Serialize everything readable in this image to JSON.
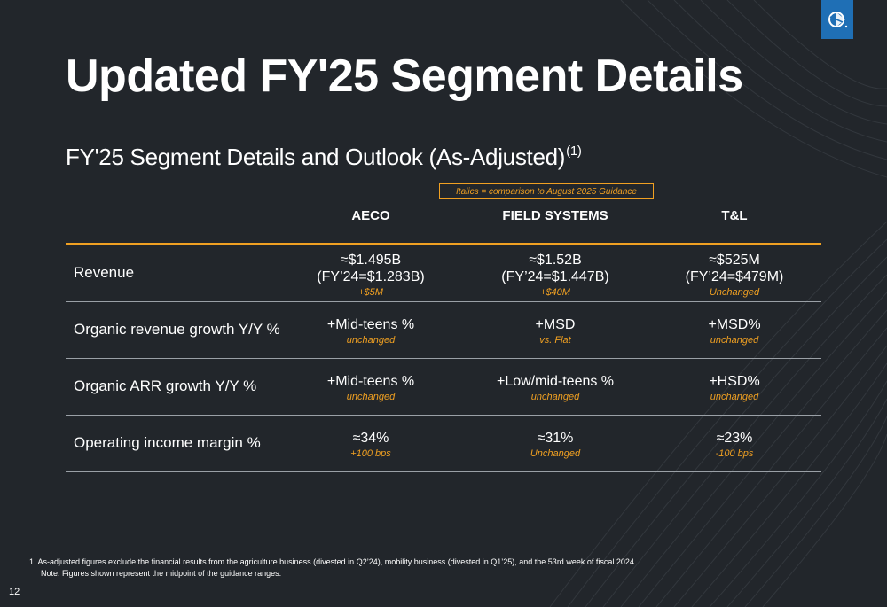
{
  "title": "Updated FY'25 Segment Details",
  "subtitle": {
    "text": "FY'25 Segment Details and Outlook (As-Adjusted)",
    "footnote_ref": "(1)"
  },
  "legend": "Italics = comparison to August 2025 Guidance",
  "columns": [
    "AECO",
    "FIELD SYSTEMS",
    "T&L"
  ],
  "rows": [
    {
      "label": "Revenue",
      "cells": [
        {
          "main": [
            "≈$1.495B",
            "(FY’24=$1.283B)"
          ],
          "note": "+$5M"
        },
        {
          "main": [
            "≈$1.52B",
            "(FY’24=$1.447B)"
          ],
          "note": "+$40M"
        },
        {
          "main": [
            "≈$525M",
            "(FY’24=$479M)"
          ],
          "note": "Unchanged"
        }
      ]
    },
    {
      "label": "Organic revenue growth Y/Y %",
      "cells": [
        {
          "main": [
            "+Mid-teens %"
          ],
          "note": "unchanged"
        },
        {
          "main": [
            "+MSD"
          ],
          "note": "vs. Flat"
        },
        {
          "main": [
            "+MSD%"
          ],
          "note": "unchanged"
        }
      ]
    },
    {
      "label": "Organic ARR growth Y/Y %",
      "cells": [
        {
          "main": [
            "+Mid-teens %"
          ],
          "note": "unchanged"
        },
        {
          "main": [
            "+Low/mid-teens %"
          ],
          "note": "unchanged"
        },
        {
          "main": [
            "+HSD%"
          ],
          "note": "unchanged"
        }
      ]
    },
    {
      "label": "Operating income margin %",
      "cells": [
        {
          "main": [
            "≈34%"
          ],
          "note": "+100 bps"
        },
        {
          "main": [
            "≈31%"
          ],
          "note": "Unchanged"
        },
        {
          "main": [
            "≈23%"
          ],
          "note": "-100 bps"
        }
      ]
    }
  ],
  "footnotes": [
    "1.  As-adjusted figures exclude the financial results from the agriculture business (divested in Q2’24), mobility business (divested in Q1’25), and the 53rd week of fiscal 2024.",
    "Note: Figures shown represent the midpoint of the guidance ranges."
  ],
  "page_number": "12",
  "colors": {
    "background": "#22262b",
    "accent": "#f0a022",
    "logo": "#1f6fb5"
  }
}
